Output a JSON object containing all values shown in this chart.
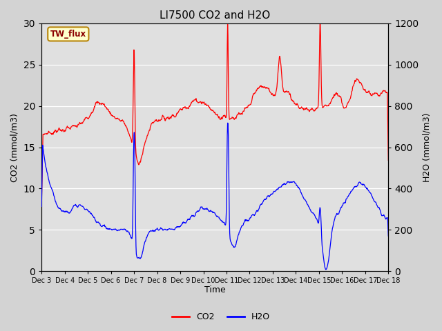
{
  "title": "LI7500 CO2 and H2O",
  "xlabel": "Time",
  "ylabel_left": "CO2 (mmol/m3)",
  "ylabel_right": "H2O (mmol/m3)",
  "ylim_left": [
    0,
    30
  ],
  "ylim_right": [
    0,
    1200
  ],
  "yticks_left": [
    0,
    5,
    10,
    15,
    20,
    25,
    30
  ],
  "yticks_right": [
    0,
    200,
    400,
    600,
    800,
    1000,
    1200
  ],
  "co2_color": "#FF0000",
  "h2o_color": "#0000FF",
  "background_color": "#D3D3D3",
  "plot_bg_color": "#E0E0E0",
  "legend_label_co2": "CO2",
  "legend_label_h2o": "H2O",
  "site_label": "TW_flux",
  "figsize": [
    6.4,
    4.8
  ],
  "dpi": 100,
  "tick_labels": [
    "Dec 3",
    "Dec 4",
    "Dec 5",
    "Dec 6",
    "Dec 7",
    "Dec 8",
    "Dec 9",
    "Dec 10",
    "Dec 11",
    "Dec 12",
    "Dec 13",
    "Dec 14",
    "Dec 15",
    "Dec 16",
    "Dec 17",
    "Dec 18"
  ],
  "n_ticks": 16
}
